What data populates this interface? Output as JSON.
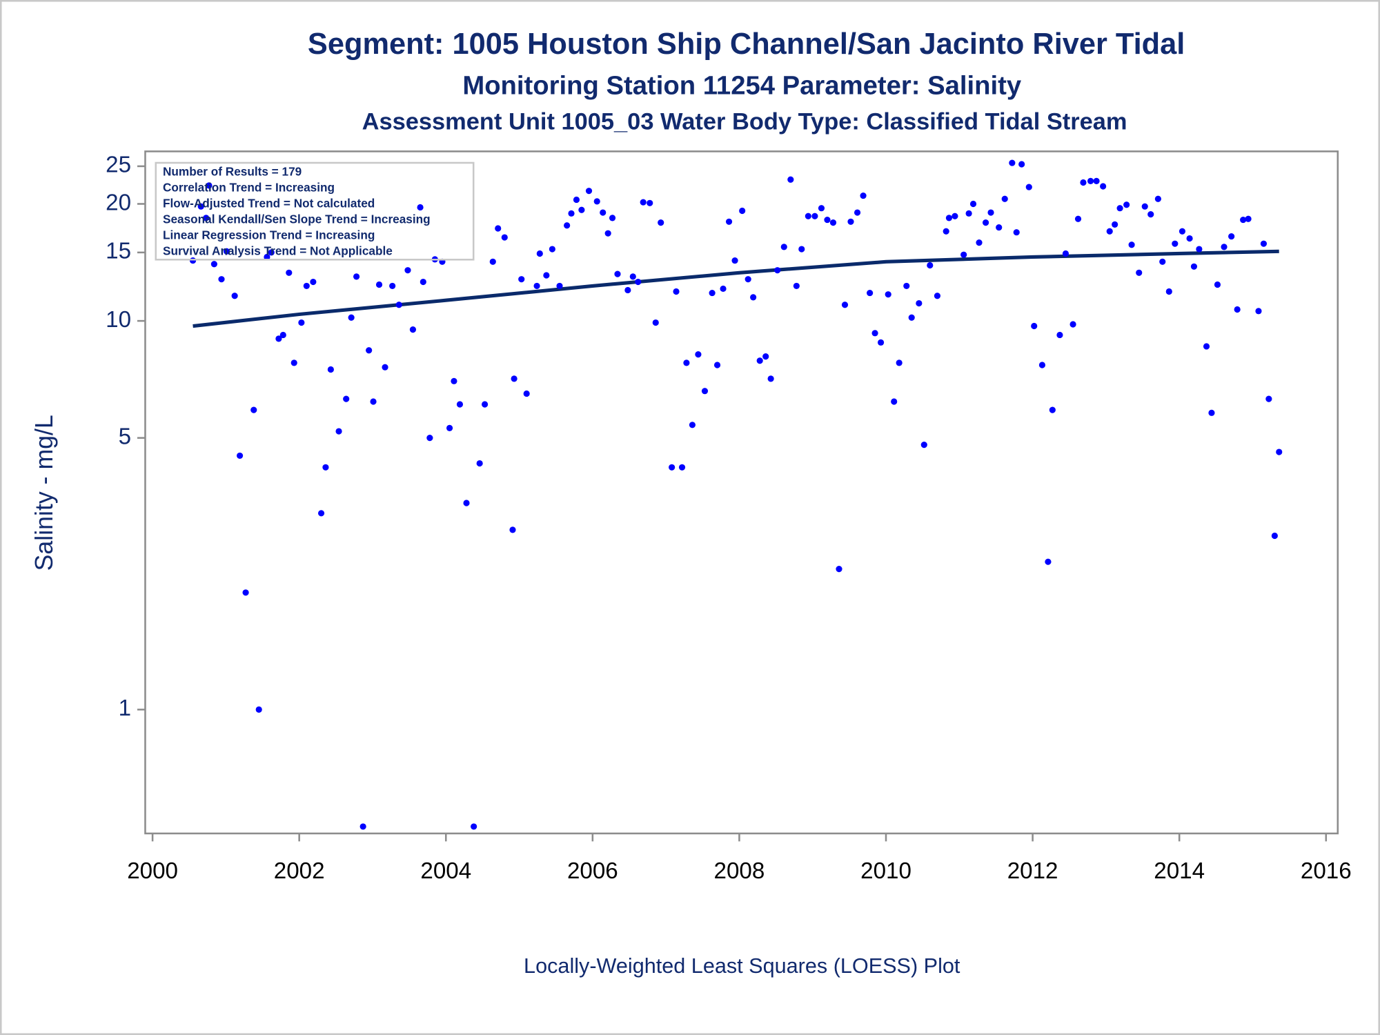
{
  "chart_data": {
    "type": "scatter",
    "title": "Segment: 1005  Houston Ship Channel/San Jacinto River Tidal",
    "subtitle": "Monitoring Station 11254 Parameter: Salinity",
    "subtitle2": "Assessment Unit 1005_03   Water Body Type: Classified Tidal Stream",
    "y_label": "Salinity - mg/L",
    "x_label": "Locally-Weighted Least Squares (LOESS) Plot",
    "annotations": [
      "Number of Results = 179",
      "Correlation Trend = Increasing",
      "Flow-Adjusted Trend = Not calculated",
      "Seasonal Kendall/Sen Slope Trend = Increasing",
      "Linear Regression Trend = Increasing",
      "Survival Analysis Trend = Not Applicable"
    ],
    "xlim": [
      1999.9,
      2016.16
    ],
    "xticks": [
      2000,
      2002,
      2004,
      2006,
      2008,
      2010,
      2012,
      2014,
      2016
    ],
    "ylim": [
      0.48,
      27.3
    ],
    "yticks": [
      1,
      5,
      10,
      15,
      20,
      25
    ],
    "y_log": true,
    "points": {
      "color": "#0000ff",
      "x": [
        2000.55,
        2000.66,
        2000.73,
        2000.77,
        2000.84,
        2000.94,
        2001.01,
        2001.12,
        2001.19,
        2001.27,
        2001.38,
        2001.45,
        2001.56,
        2001.62,
        2001.72,
        2001.78,
        2001.86,
        2001.93,
        2002.03,
        2002.1,
        2002.19,
        2002.3,
        2002.36,
        2002.43,
        2002.54,
        2002.64,
        2002.71,
        2002.78,
        2002.87,
        2002.95,
        2003.01,
        2003.09,
        2003.17,
        2003.27,
        2003.36,
        2003.48,
        2003.55,
        2003.65,
        2003.69,
        2003.78,
        2003.85,
        2003.95,
        2004.05,
        2004.11,
        2004.19,
        2004.28,
        2004.38,
        2004.46,
        2004.53,
        2004.64,
        2004.71,
        2004.8,
        2004.91,
        2004.93,
        2005.03,
        2005.1,
        2005.24,
        2005.28,
        2005.37,
        2005.45,
        2005.55,
        2005.65,
        2005.71,
        2005.78,
        2005.85,
        2005.95,
        2006.06,
        2006.14,
        2006.21,
        2006.27,
        2006.34,
        2006.48,
        2006.55,
        2006.62,
        2006.69,
        2006.78,
        2006.86,
        2006.93,
        2007.08,
        2007.14,
        2007.22,
        2007.28,
        2007.36,
        2007.44,
        2007.53,
        2007.63,
        2007.7,
        2007.78,
        2007.86,
        2007.94,
        2008.04,
        2008.12,
        2008.19,
        2008.28,
        2008.36,
        2008.43,
        2008.52,
        2008.61,
        2008.7,
        2008.78,
        2008.85,
        2008.94,
        2009.03,
        2009.12,
        2009.2,
        2009.28,
        2009.36,
        2009.44,
        2009.52,
        2009.61,
        2009.69,
        2009.78,
        2009.85,
        2009.93,
        2010.03,
        2010.11,
        2010.18,
        2010.28,
        2010.35,
        2010.45,
        2010.52,
        2010.6,
        2010.7,
        2010.82,
        2010.86,
        2010.94,
        2011.06,
        2011.13,
        2011.19,
        2011.27,
        2011.36,
        2011.43,
        2011.54,
        2011.62,
        2011.72,
        2011.78,
        2011.85,
        2011.95,
        2012.02,
        2012.13,
        2012.21,
        2012.27,
        2012.37,
        2012.45,
        2012.55,
        2012.62,
        2012.69,
        2012.79,
        2012.87,
        2012.96,
        2013.05,
        2013.12,
        2013.19,
        2013.28,
        2013.35,
        2013.45,
        2013.53,
        2013.61,
        2013.71,
        2013.77,
        2013.86,
        2013.94,
        2014.04,
        2014.14,
        2014.2,
        2014.27,
        2014.37,
        2014.44,
        2014.52,
        2014.61,
        2014.71,
        2014.79,
        2014.87,
        2014.94,
        2015.08,
        2015.15,
        2015.22,
        2015.3,
        2015.36
      ],
      "values": [
        14.3,
        19.7,
        18.4,
        22.3,
        14.0,
        12.8,
        15.1,
        11.6,
        4.5,
        2.0,
        5.9,
        1.0,
        14.6,
        15.0,
        9.0,
        9.2,
        13.3,
        7.8,
        9.9,
        12.3,
        12.6,
        3.2,
        4.2,
        7.5,
        5.2,
        6.3,
        10.2,
        13.0,
        0.5,
        8.4,
        6.2,
        12.4,
        7.6,
        12.3,
        11.0,
        13.5,
        9.5,
        19.6,
        12.6,
        5.0,
        14.4,
        14.2,
        5.3,
        7.0,
        6.1,
        3.4,
        0.5,
        4.3,
        6.1,
        14.2,
        17.3,
        16.4,
        2.9,
        7.1,
        12.8,
        6.5,
        12.3,
        14.9,
        13.1,
        15.3,
        12.3,
        17.6,
        18.9,
        20.5,
        19.3,
        21.6,
        20.3,
        19.0,
        16.8,
        18.4,
        13.2,
        12.0,
        13.0,
        12.6,
        20.2,
        20.1,
        9.9,
        17.9,
        4.2,
        11.9,
        4.2,
        7.8,
        5.4,
        8.2,
        6.6,
        11.8,
        7.7,
        12.1,
        18.0,
        14.3,
        19.2,
        12.8,
        11.5,
        7.9,
        8.1,
        7.1,
        13.5,
        15.5,
        23.1,
        12.3,
        15.3,
        18.6,
        18.6,
        19.5,
        18.2,
        17.9,
        2.3,
        11.0,
        18.0,
        19.0,
        21.0,
        11.8,
        9.3,
        8.8,
        11.7,
        6.2,
        7.8,
        12.3,
        10.2,
        11.1,
        4.8,
        13.9,
        11.6,
        17.0,
        18.4,
        18.6,
        14.8,
        18.9,
        20.0,
        15.9,
        17.9,
        19.0,
        17.4,
        20.6,
        25.5,
        16.9,
        25.3,
        22.1,
        9.7,
        7.7,
        2.4,
        5.9,
        9.2,
        14.9,
        9.8,
        18.3,
        22.7,
        22.9,
        22.9,
        22.2,
        17.0,
        17.7,
        19.5,
        19.9,
        15.7,
        13.3,
        19.7,
        18.8,
        20.6,
        14.2,
        11.9,
        15.8,
        17.0,
        16.3,
        13.8,
        15.3,
        8.6,
        5.8,
        12.4,
        15.5,
        16.5,
        10.7,
        18.2,
        18.3,
        10.6,
        15.8,
        6.3,
        2.8,
        4.6
      ]
    },
    "trend": {
      "color": "#0a2a6b",
      "x": [
        2000.55,
        2002,
        2004,
        2006,
        2008,
        2010,
        2012,
        2014,
        2015.36
      ],
      "values": [
        9.7,
        10.4,
        11.3,
        12.3,
        13.3,
        14.2,
        14.6,
        14.9,
        15.1
      ]
    }
  }
}
